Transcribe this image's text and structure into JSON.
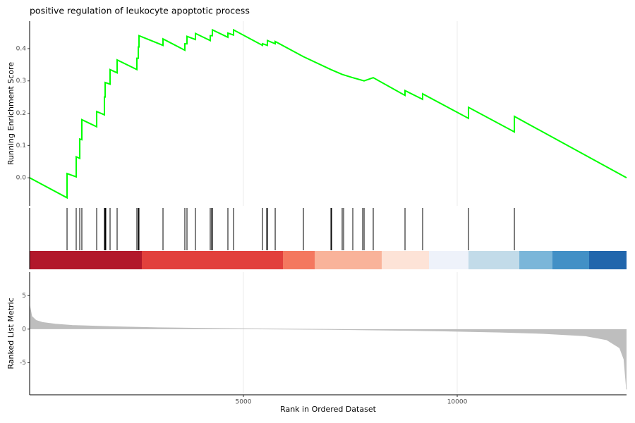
{
  "chart_data": [
    {
      "type": "line",
      "title": "positive regulation of leukocyte apoptotic process",
      "ylabel": "Running Enrichment Score",
      "color": "#00ff00",
      "x": [
        0,
        875,
        875,
        1089,
        1089,
        1172,
        1172,
        1221,
        1221,
        1568,
        1568,
        1749,
        1749,
        1766,
        1766,
        1881,
        1881,
        2046,
        2046,
        2508,
        2508,
        2541,
        2541,
        2558,
        2558,
        3119,
        3119,
        3630,
        3630,
        3680,
        3680,
        3878,
        3878,
        4224,
        4224,
        4274,
        4274,
        4637,
        4637,
        4769,
        4769,
        5446,
        5446,
        5561,
        5561,
        5743,
        5743,
        6403,
        7046,
        7310,
        7558,
        7822,
        8036,
        8779,
        8779,
        9191,
        9191,
        10264,
        10264,
        11337,
        11337,
        13960
      ],
      "values": [
        0,
        -0.062,
        0.013,
        0.003,
        0.065,
        0.06,
        0.12,
        0.118,
        0.18,
        0.158,
        0.205,
        0.195,
        0.25,
        0.25,
        0.295,
        0.29,
        0.335,
        0.325,
        0.365,
        0.335,
        0.37,
        0.37,
        0.405,
        0.405,
        0.44,
        0.41,
        0.43,
        0.395,
        0.415,
        0.415,
        0.438,
        0.428,
        0.447,
        0.425,
        0.44,
        0.44,
        0.458,
        0.435,
        0.448,
        0.442,
        0.458,
        0.41,
        0.415,
        0.41,
        0.425,
        0.415,
        0.422,
        0.375,
        0.335,
        0.32,
        0.31,
        0.3,
        0.31,
        0.255,
        0.27,
        0.243,
        0.26,
        0.184,
        0.218,
        0.142,
        0.19,
        0.0
      ],
      "xlim": [
        0,
        13960
      ],
      "ylim": [
        -0.087,
        0.485
      ],
      "yticks": [
        0.0,
        0.1,
        0.2,
        0.3,
        0.4
      ],
      "xticks": [
        5000,
        10000
      ],
      "grid": true
    },
    {
      "type": "rug",
      "color": "#000000",
      "xlim": [
        0,
        13960
      ],
      "x": [
        875,
        1089,
        1172,
        1221,
        1568,
        1749,
        1766,
        1782,
        1881,
        2046,
        2508,
        2541,
        2558,
        3119,
        3630,
        3680,
        3878,
        4224,
        4257,
        4274,
        4637,
        4769,
        5446,
        5545,
        5561,
        5743,
        6403,
        7046,
        7063,
        7310,
        7343,
        7558,
        7789,
        7822,
        8036,
        8779,
        9191,
        10264,
        11337
      ]
    },
    {
      "type": "area",
      "ylabel": "Ranked List Metric",
      "xlabel": "Rank in Ordered Dataset",
      "color": "#bebebe",
      "x": [
        1,
        50,
        150,
        300,
        600,
        1000,
        2000,
        3000,
        5000,
        7000,
        9000,
        11000,
        12000,
        13000,
        13500,
        13800,
        13900,
        13960
      ],
      "values": [
        3.5,
        1.9,
        1.3,
        1.0,
        0.75,
        0.55,
        0.35,
        0.2,
        0.05,
        -0.05,
        -0.2,
        -0.45,
        -0.65,
        -1.0,
        -1.6,
        -2.8,
        -4.5,
        -9.0
      ],
      "xlim": [
        0,
        13960
      ],
      "ylim": [
        -9.8,
        8.5
      ],
      "yticks": [
        -5,
        0,
        5
      ],
      "xticks": [
        5000,
        10000
      ],
      "grid": true
    }
  ]
}
